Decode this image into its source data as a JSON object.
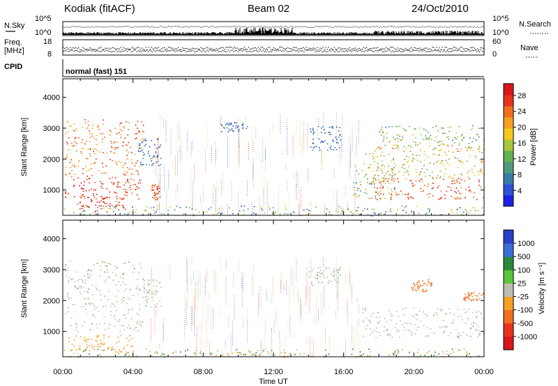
{
  "header": {
    "station": "Kodiak (fitACF)",
    "beam": "Beam 02",
    "date": "24/Oct/2010"
  },
  "noise_panel": {
    "left_label": "N.Sky",
    "right_label": "N.Search",
    "left_ticks": [
      "10^5",
      "10^0"
    ],
    "right_ticks": [
      "10^5",
      "10^0"
    ]
  },
  "freq_panel": {
    "left_label_line1": "Freq.",
    "left_label_line2": "[MHz]",
    "right_label": "Nave",
    "left_ticks": [
      "18",
      "8"
    ],
    "right_ticks": [
      "60",
      "0"
    ]
  },
  "cpid_panel": {
    "label": "CPID",
    "text": "normal (fast) 151"
  },
  "chart_data": [
    {
      "type": "heatmap",
      "title": "",
      "xlabel": "",
      "ylabel": "Slant Range [km]",
      "yticks": [
        "1000",
        "2000",
        "3000",
        "4000"
      ],
      "ylim": [
        180,
        4600
      ],
      "xlim_hours": [
        0,
        24
      ],
      "colorbar": {
        "label": "Power [dB]",
        "ticks": [
          "4",
          "8",
          "12",
          "16",
          "20",
          "24",
          "28"
        ],
        "colors": [
          "#1e1ee6",
          "#2f52d6",
          "#3a7ca6",
          "#4f9a7a",
          "#64b050",
          "#a6c83a",
          "#f2c81e",
          "#f5a023",
          "#f06e1e",
          "#e8321c",
          "#d9161c"
        ]
      },
      "regions": [
        {
          "x": [
            0.1,
            4.4
          ],
          "y": [
            700,
            1500
          ],
          "v": [
            24,
            30
          ],
          "desc": "dense band 00-04 UT"
        },
        {
          "x": [
            0.1,
            4.6
          ],
          "y": [
            1500,
            3300
          ],
          "v": [
            20,
            28
          ],
          "desc": "rising streaks"
        },
        {
          "x": [
            0.8,
            3.6
          ],
          "y": [
            300,
            800
          ],
          "v": [
            24,
            30
          ],
          "desc": "lower band"
        },
        {
          "x": [
            4.3,
            5.6
          ],
          "y": [
            1800,
            2700
          ],
          "v": [
            4,
            10
          ],
          "desc": "blue patch"
        },
        {
          "x": [
            5.0,
            5.5
          ],
          "y": [
            700,
            1200
          ],
          "v": [
            22,
            30
          ],
          "desc": "small red patch"
        },
        {
          "x": [
            9.0,
            10.5
          ],
          "y": [
            2900,
            3200
          ],
          "v": [
            4,
            10
          ]
        },
        {
          "x": [
            14.0,
            15.8
          ],
          "y": [
            2300,
            3100
          ],
          "v": [
            4,
            10
          ]
        },
        {
          "x": [
            16.5,
            19.0
          ],
          "y": [
            700,
            1800
          ],
          "v": [
            8,
            24
          ]
        },
        {
          "x": [
            17.5,
            24.0
          ],
          "y": [
            700,
            1400
          ],
          "v": [
            22,
            30
          ],
          "desc": "dense band 18-24 UT"
        },
        {
          "x": [
            17.0,
            24.0
          ],
          "y": [
            1400,
            2500
          ],
          "v": [
            12,
            26
          ]
        },
        {
          "x": [
            18.0,
            24.0
          ],
          "y": [
            2500,
            3100
          ],
          "v": [
            8,
            18
          ]
        },
        {
          "x": [
            0.0,
            24.0
          ],
          "y": [
            180,
            500
          ],
          "v": [
            4,
            20
          ],
          "desc": "near-range band"
        }
      ]
    },
    {
      "type": "heatmap",
      "title": "",
      "xlabel": "Time UT",
      "ylabel": "Slant Range [km]",
      "yticks": [
        "1000",
        "2000",
        "3000",
        "4000"
      ],
      "ylim": [
        180,
        4600
      ],
      "xlim_hours": [
        0,
        24
      ],
      "xticks": [
        "00:00",
        "04:00",
        "08:00",
        "12:00",
        "16:00",
        "20:00",
        "00:00"
      ],
      "colorbar": {
        "label": "Velocity [m s⁻¹]",
        "ticks": [
          "1000",
          "500",
          "100",
          "25",
          "-25",
          "-100",
          "-500",
          "-1000"
        ],
        "colors": [
          "#2a3ec8",
          "#3a6fd6",
          "#2a8a3a",
          "#5ac43a",
          "#bdbdb2",
          "#f5a023",
          "#f06e1e",
          "#e8321c",
          "#d9161c"
        ]
      },
      "regions": [
        {
          "x": [
            0.1,
            4.5
          ],
          "y": [
            1000,
            3300
          ],
          "v": [
            -25,
            25
          ],
          "desc": "ground scatter 00-04 UT"
        },
        {
          "x": [
            0.3,
            4.0
          ],
          "y": [
            350,
            900
          ],
          "v": [
            -100,
            -25
          ],
          "desc": "orange band"
        },
        {
          "x": [
            4.5,
            5.6
          ],
          "y": [
            1800,
            2700
          ],
          "v": [
            -25,
            25
          ]
        },
        {
          "x": [
            14.0,
            15.8
          ],
          "y": [
            2500,
            3100
          ],
          "v": [
            -25,
            25
          ]
        },
        {
          "x": [
            17.0,
            24.0
          ],
          "y": [
            800,
            1800
          ],
          "v": [
            -25,
            25
          ],
          "desc": "ground scatter 17-24 UT"
        },
        {
          "x": [
            19.8,
            21.0
          ],
          "y": [
            2300,
            2700
          ],
          "v": [
            -500,
            -100
          ]
        },
        {
          "x": [
            22.8,
            24.0
          ],
          "y": [
            2000,
            2300
          ],
          "v": [
            -500,
            -100
          ]
        },
        {
          "x": [
            0.0,
            24.0
          ],
          "y": [
            180,
            450
          ],
          "v": [
            -100,
            100
          ],
          "desc": "near-range band"
        }
      ]
    }
  ]
}
